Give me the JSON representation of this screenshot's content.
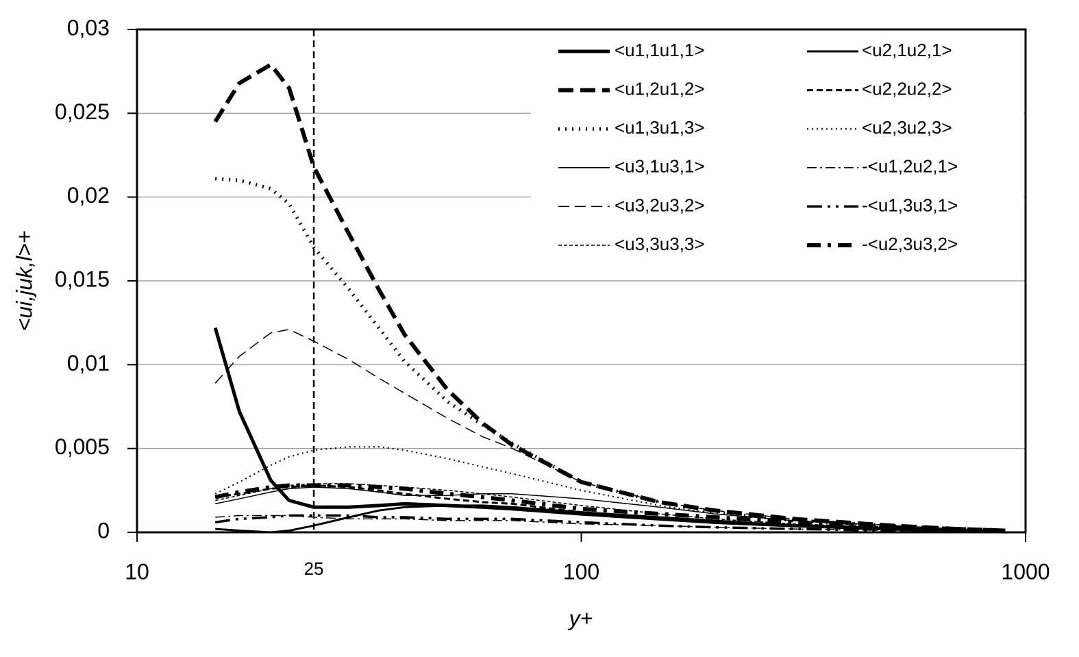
{
  "chart_data": {
    "type": "line",
    "xlabel": "y+",
    "ylabel": "<ui,juk,l>+",
    "xscale": "log",
    "grid": true,
    "vline": 25,
    "xlim": [
      10,
      1000
    ],
    "xticks": [
      10,
      100,
      1000
    ],
    "ylim": [
      0,
      0.03
    ],
    "yticks": [
      0,
      {
        "value": 0.005,
        "label": "0,005"
      },
      {
        "value": 0.01,
        "label": "0,01"
      },
      {
        "value": 0.015,
        "label": "0,015"
      },
      {
        "value": 0.02,
        "label": "0,02"
      },
      {
        "value": 0.025,
        "label": "0,025"
      },
      {
        "value": 0.03,
        "label": "0,03"
      }
    ],
    "x": [
      15,
      17,
      20,
      22,
      25,
      30,
      35,
      40,
      50,
      60,
      70,
      100,
      150,
      200,
      300,
      500,
      700,
      900
    ],
    "series": [
      {
        "name": "<u1,1u1,1>",
        "color": "#000000",
        "line_width": 5,
        "dash": "none",
        "values": [
          0.0122,
          0.0072,
          0.0031,
          0.0019,
          0.0015,
          0.0015,
          0.0016,
          0.0017,
          0.0016,
          0.0015,
          0.0014,
          0.0011,
          0.0008,
          0.0006,
          0.0004,
          0.0002,
          0.0001,
          0.0001
        ]
      },
      {
        "name": "<u1,2u1,2>",
        "color": "#000000",
        "line_width": 6,
        "dash": "22,10",
        "values": [
          0.0245,
          0.0268,
          0.0279,
          0.0265,
          0.0218,
          0.0178,
          0.0145,
          0.0118,
          0.0085,
          0.0065,
          0.0052,
          0.003,
          0.0018,
          0.0013,
          0.0008,
          0.0004,
          0.0002,
          0.0001
        ]
      },
      {
        "name": "<u1,3u1,3>",
        "color": "#000000",
        "line_width": 5,
        "dash": "2,8",
        "values": [
          0.0211,
          0.021,
          0.0205,
          0.0196,
          0.017,
          0.0145,
          0.0122,
          0.0102,
          0.0078,
          0.0064,
          0.0053,
          0.003,
          0.0018,
          0.0012,
          0.0007,
          0.0004,
          0.0002,
          0.0001
        ]
      },
      {
        "name": "<u3,1u3,1>",
        "color": "#000000",
        "line_width": 1.5,
        "dash": "none",
        "values": [
          0.0017,
          0.002,
          0.0024,
          0.0026,
          0.0027,
          0.0026,
          0.0024,
          0.0022,
          0.0022,
          0.0023,
          0.0023,
          0.002,
          0.0015,
          0.0011,
          0.0007,
          0.0004,
          0.0002,
          0.0001
        ]
      },
      {
        "name": "<u3,2u3,2>",
        "color": "#000000",
        "line_width": 1.5,
        "dash": "16,8",
        "values": [
          0.0089,
          0.0105,
          0.0119,
          0.0121,
          0.0114,
          0.0103,
          0.0092,
          0.0083,
          0.0068,
          0.0057,
          0.005,
          0.003,
          0.0018,
          0.0013,
          0.0008,
          0.0004,
          0.0002,
          0.0001
        ]
      },
      {
        "name": "<u3,3u3,3>",
        "color": "#000000",
        "line_width": 1.5,
        "dash": "5,3",
        "values": [
          0.0019,
          0.0022,
          0.0026,
          0.0028,
          0.0029,
          0.0029,
          0.0028,
          0.0027,
          0.0025,
          0.0023,
          0.0021,
          0.0016,
          0.0011,
          0.0008,
          0.0005,
          0.0003,
          0.0002,
          0.0001
        ]
      },
      {
        "name": "<u2,1u2,1>",
        "color": "#000000",
        "line_width": 3,
        "dash": "none",
        "values": [
          0.0002,
          0.0001,
          0,
          0.0001,
          0.0004,
          0.0009,
          0.0013,
          0.0015,
          0.0016,
          0.0016,
          0.0015,
          0.0012,
          0.0009,
          0.0007,
          0.0004,
          0.0002,
          0.0001,
          0.0001
        ]
      },
      {
        "name": "<u2,2u2,2>",
        "color": "#000000",
        "line_width": 3,
        "dash": "9,5",
        "values": [
          0.0021,
          0.0023,
          0.0026,
          0.0027,
          0.0028,
          0.0027,
          0.0025,
          0.0023,
          0.002,
          0.0018,
          0.0017,
          0.0012,
          0.0008,
          0.0006,
          0.0004,
          0.0002,
          0.0001,
          0.0001
        ]
      },
      {
        "name": "<u2,3u2,3>",
        "color": "#000000",
        "line_width": 2,
        "dash": "2,5",
        "values": [
          0.0023,
          0.003,
          0.004,
          0.0045,
          0.0049,
          0.0051,
          0.0051,
          0.0049,
          0.0044,
          0.0039,
          0.0035,
          0.0025,
          0.0016,
          0.0011,
          0.0007,
          0.0003,
          0.0002,
          0.0001
        ]
      },
      {
        "name": "-<u1,2u2,1>",
        "color": "#000000",
        "line_width": 1.5,
        "dash": "14,5,3,5",
        "values": [
          0.0009,
          0.001,
          0.001,
          0.001,
          0.0009,
          0.0008,
          0.0008,
          0.0008,
          0.0007,
          0.0007,
          0.0007,
          0.0005,
          0.0004,
          0.0003,
          0.0002,
          0.0001,
          0.0001,
          0
        ]
      },
      {
        "name": "-<u1,3u3,1>",
        "color": "#000000",
        "line_width": 3.5,
        "dash": "22,8,4,8,4,8",
        "values": [
          0.0006,
          0.0008,
          0.0009,
          0.001,
          0.001,
          0.001,
          0.0009,
          0.0009,
          0.0008,
          0.0008,
          0.0008,
          0.0006,
          0.0004,
          0.0003,
          0.0002,
          0.0001,
          0.0001,
          0
        ]
      },
      {
        "name": "-<u2,3u3,2>",
        "color": "#000000",
        "line_width": 6,
        "dash": "20,10,5,10",
        "values": [
          0.0021,
          0.0024,
          0.0027,
          0.0028,
          0.0028,
          0.0028,
          0.0027,
          0.0026,
          0.0023,
          0.0021,
          0.0019,
          0.0014,
          0.0011,
          0.0009,
          0.0006,
          0.0003,
          0.0002,
          0.0001
        ]
      }
    ]
  }
}
